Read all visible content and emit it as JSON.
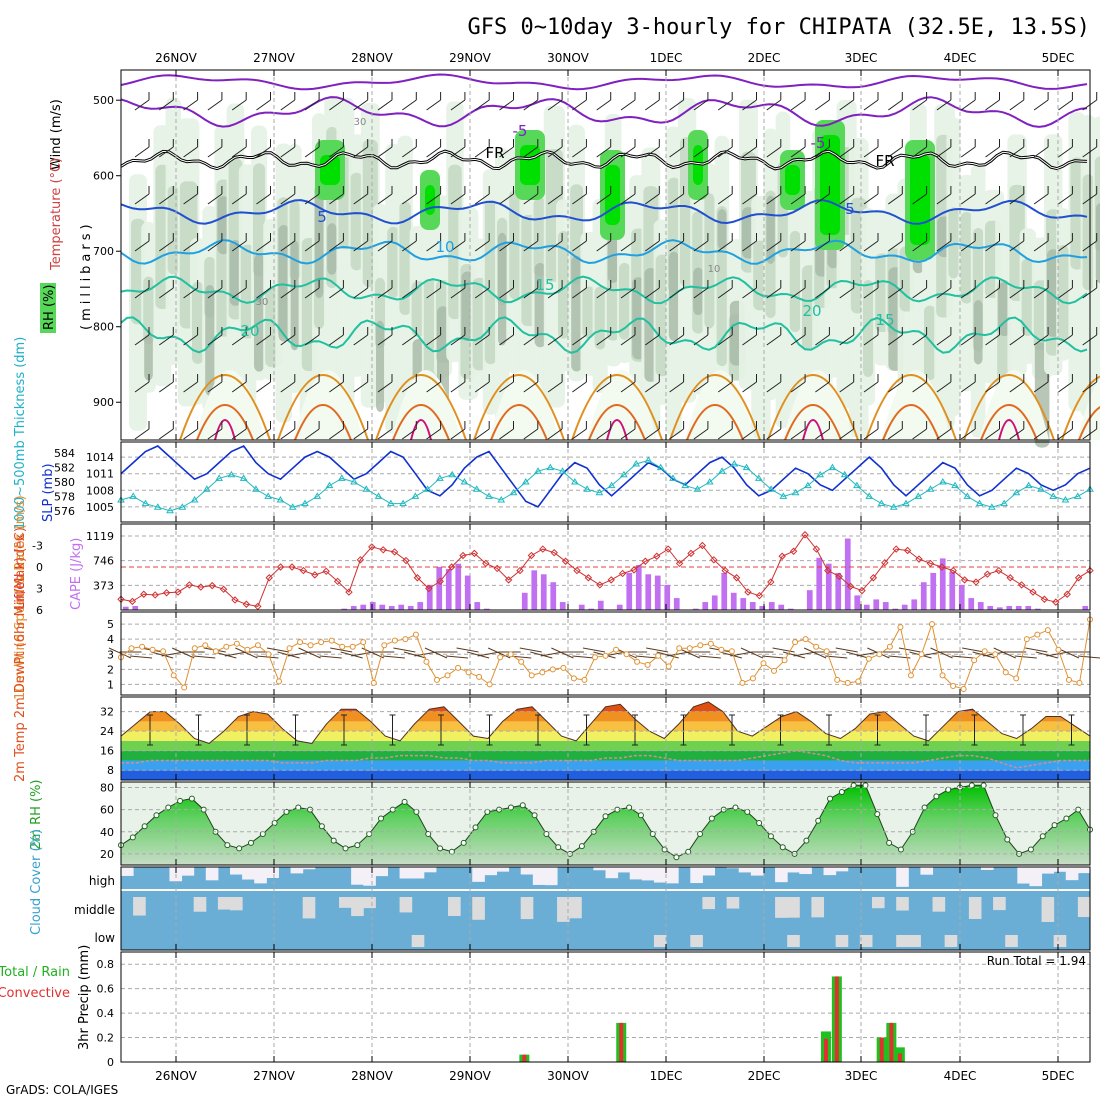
{
  "title": "GFS 0~10day 3-hourly for CHIPATA (32.5E, 13.5S)",
  "credit": "GrADS: COLA/IGES",
  "dates": [
    "26NOV",
    "27NOV",
    "28NOV",
    "29NOV",
    "30NOV",
    "1DEC",
    "2DEC",
    "3DEC",
    "4DEC",
    "5DEC"
  ],
  "colors": {
    "rh_light": "#e6f2e6",
    "rh_mid": "#c8dcc8",
    "rh_dark": "#a6b8a6",
    "rh_green": "#58d858",
    "rh_bright": "#00e000",
    "isotherm_purple": "#8020c0",
    "isotherm_blue": "#2050d0",
    "isotherm_cyan": "#20a0e0",
    "isotherm_teal": "#20c0a0",
    "isotherm_orange": "#e09020",
    "isotherm_red": "#d02020",
    "slp": "#1030d0",
    "thickness": "#20b8c0",
    "cape": "#c070f0",
    "lifted": "#d03030",
    "wind": "#e09030",
    "cloud": "#6aaed6",
    "precip_total": "#20c020",
    "precip_conv": "#e03030"
  },
  "chart_data": [
    {
      "name": "upper-air-cross-section",
      "type": "heatmap",
      "ylabel_wind": "Wind (m/s)",
      "ylabel_temp": "Temperature (°C)",
      "ylabel_axis": "(millibars)",
      "ylabel_rh": "RH (%)",
      "yticks": [
        500,
        600,
        700,
        800,
        900
      ],
      "ylim": [
        950,
        460
      ],
      "contour_labels": [
        "-5",
        "-5",
        "FR",
        "FR",
        "5",
        "5",
        "10",
        "15",
        "15",
        "20",
        "20",
        "30",
        "30",
        "10"
      ]
    },
    {
      "name": "slp-thickness",
      "type": "line",
      "ylabel_thick": "1000~500mb Thickness (dm)",
      "ylabel_slp": "SLP (mb)",
      "thick_ticks": [
        576,
        578,
        580,
        582,
        584
      ],
      "slp_ticks": [
        1005,
        1008,
        1011,
        1014
      ],
      "slp": [
        1011,
        1013,
        1015,
        1016,
        1014,
        1012,
        1010,
        1011,
        1013,
        1015,
        1016,
        1013,
        1011,
        1010,
        1012,
        1014,
        1015,
        1014,
        1012,
        1010,
        1011,
        1013,
        1015,
        1014,
        1011,
        1008,
        1007,
        1009,
        1012,
        1014,
        1015,
        1012,
        1009,
        1006,
        1005,
        1008,
        1011,
        1013,
        1012,
        1009,
        1007,
        1009,
        1011,
        1013,
        1012,
        1010,
        1009,
        1011,
        1013,
        1014,
        1012,
        1009,
        1007,
        1008,
        1010,
        1012,
        1011,
        1009,
        1008,
        1010,
        1012,
        1014,
        1012,
        1009,
        1007,
        1009,
        1011,
        1013,
        1012,
        1009,
        1007,
        1008,
        1010,
        1012,
        1011,
        1009,
        1008,
        1009,
        1011,
        1012
      ],
      "thickness": [
        577.5,
        578,
        577,
        576.5,
        576,
        576.5,
        577.5,
        579,
        580.5,
        581,
        580.5,
        579,
        578,
        577.5,
        576.5,
        577,
        578,
        579.5,
        580.5,
        580,
        579,
        578,
        577,
        577,
        578,
        579,
        580.5,
        581,
        580,
        579,
        578,
        577.5,
        578.5,
        580,
        581.5,
        582,
        581.5,
        580,
        579,
        578.5,
        579.5,
        581,
        582.5,
        583,
        582,
        580.5,
        579.5,
        579,
        580,
        581.5,
        582.5,
        582,
        580.5,
        579,
        578,
        578.5,
        579.5,
        581,
        582,
        581,
        579.5,
        578,
        577,
        576.5,
        577,
        578,
        579,
        580,
        579.5,
        578,
        577,
        576.5,
        577,
        578.5,
        579.5,
        579,
        578,
        577.5,
        578,
        579
      ]
    },
    {
      "name": "cape-lifted-index",
      "type": "bar",
      "ylabel_li": "Lifted Index",
      "ylabel_cape": "CAPE (J/kg)",
      "li_ticks": [
        -3,
        0,
        3,
        6
      ],
      "cape_ticks": [
        373,
        746,
        1119
      ],
      "cape": [
        50,
        60,
        0,
        0,
        0,
        0,
        0,
        0,
        0,
        0,
        0,
        0,
        0,
        0,
        0,
        0,
        0,
        0,
        0,
        0,
        0,
        0,
        0,
        20,
        60,
        80,
        120,
        80,
        60,
        80,
        60,
        120,
        380,
        650,
        620,
        700,
        520,
        120,
        20,
        0,
        0,
        0,
        260,
        600,
        540,
        420,
        120,
        0,
        80,
        20,
        140,
        0,
        80,
        560,
        680,
        540,
        520,
        380,
        180,
        0,
        20,
        120,
        220,
        560,
        260,
        180,
        120,
        60,
        120,
        80,
        20,
        0,
        300,
        790,
        700,
        560,
        1080,
        220,
        80,
        160,
        120,
        20,
        80,
        160,
        420,
        560,
        780,
        580,
        380,
        180,
        120,
        60,
        40,
        60,
        60,
        60,
        20,
        0,
        0,
        0,
        0,
        60
      ],
      "lifted": [
        4.5,
        4.8,
        3.8,
        3.9,
        3.6,
        3.5,
        2.5,
        2.8,
        2.6,
        3.1,
        4.6,
        5.2,
        5.5,
        1.5,
        0,
        0,
        0.5,
        1.1,
        0.6,
        2,
        3.5,
        -1,
        -2.8,
        -2.4,
        -2.1,
        -0.9,
        1.5,
        3,
        2,
        0,
        -1.6,
        -1.9,
        -0.5,
        0.2,
        1.8,
        0.5,
        -1.6,
        -2.5,
        -2,
        -0.8,
        0.5,
        1.5,
        2.5,
        1.8,
        0.9,
        0.4,
        -0.8,
        -1.5,
        -2.5,
        -0.5,
        -1.9,
        -3,
        -1,
        0.5,
        1.5,
        3.5,
        4,
        2.1,
        -1.5,
        -2.2,
        -4.5,
        -2.5,
        0.5,
        1.3,
        2.7,
        3.3,
        1.5,
        -0.6,
        -2.5,
        -2.3,
        -1.1,
        -0.5,
        0,
        0.5,
        1.8,
        2.1,
        1,
        0.5,
        1.5,
        2.5,
        3.5,
        4.5,
        4.9,
        3.8,
        1.5,
        0.5
      ]
    },
    {
      "name": "10m-wind",
      "type": "line",
      "ylabel": "10m Wind Speed & Barbs (m/s)",
      "yticks": [
        1,
        2,
        3,
        4,
        5
      ],
      "speed": [
        2.8,
        3.4,
        3.5,
        3.3,
        3.2,
        1.6,
        0.8,
        3.4,
        3.6,
        3.2,
        3.5,
        3.7,
        3.3,
        3.6,
        3.0,
        1.2,
        3.4,
        3.8,
        3.6,
        3.8,
        3.9,
        3.5,
        3.5,
        3.8,
        1.1,
        3.6,
        3.9,
        4.0,
        4.3,
        2.5,
        1.3,
        1.6,
        2.1,
        1.8,
        1.5,
        1.0,
        2.8,
        3.0,
        2.5,
        1.6,
        1.8,
        2.0,
        2.1,
        1.4,
        1.3,
        2.8,
        2.9,
        3.3,
        3.0,
        2.5,
        2.3,
        2.9,
        2.2,
        3.4,
        3.4,
        3.6,
        3.7,
        3.3,
        3.2,
        1.1,
        1.4,
        2.4,
        1.9,
        2.6,
        3.8,
        4.0,
        3.5,
        3.2,
        1.3,
        1.1,
        1.2,
        2.7,
        3.0,
        3.5,
        4.8,
        1.6,
        3.0,
        5.0,
        1.6,
        0.9,
        0.7,
        2.6,
        3.2,
        3.0,
        1.8,
        1.4,
        4.0,
        4.3,
        4.6,
        3.3,
        1.3,
        1.1,
        5.3
      ]
    },
    {
      "name": "2m-temp",
      "type": "area",
      "ylabel": "2m Temp 2m DewPt (6hr Min/Max) (°C)",
      "yticks": [
        8,
        16,
        24,
        32
      ],
      "temp": [
        22,
        27,
        32,
        32,
        27,
        21,
        19,
        24,
        30,
        32,
        31,
        25,
        20,
        19,
        27,
        33,
        33,
        28,
        22,
        20,
        27,
        33,
        34,
        28,
        22,
        21,
        28,
        33,
        34,
        28,
        22,
        20,
        27,
        34,
        35,
        29,
        24,
        21,
        27,
        34,
        36,
        32,
        24,
        22,
        26,
        30,
        32,
        28,
        23,
        21,
        25,
        31,
        32,
        27,
        22,
        20,
        26,
        32,
        33,
        28,
        23,
        21,
        25,
        30,
        30,
        26,
        22
      ],
      "dewpt": [
        11,
        11,
        12,
        12,
        12,
        12,
        12,
        12,
        12,
        12,
        12,
        11,
        11,
        11,
        12,
        12,
        12,
        13,
        13,
        14,
        14,
        14,
        13,
        13,
        12,
        12,
        11,
        11,
        11,
        12,
        12,
        12,
        12,
        13,
        13,
        14,
        14,
        13,
        12,
        12,
        12,
        12,
        12,
        13,
        14,
        15,
        16,
        15,
        14,
        12,
        11,
        11,
        11,
        11,
        11,
        12,
        13,
        14,
        14,
        13,
        11,
        9,
        10,
        11,
        12,
        12,
        12
      ]
    },
    {
      "name": "2m-rh",
      "type": "area",
      "ylabel": "2m RH (%)",
      "yticks": [
        20,
        40,
        60,
        80
      ],
      "rh": [
        28,
        35,
        45,
        55,
        62,
        68,
        70,
        60,
        40,
        28,
        25,
        30,
        38,
        48,
        58,
        62,
        60,
        45,
        32,
        25,
        28,
        38,
        52,
        60,
        67,
        58,
        38,
        25,
        22,
        30,
        44,
        58,
        60,
        62,
        64,
        55,
        38,
        26,
        20,
        27,
        40,
        54,
        60,
        62,
        55,
        38,
        24,
        17,
        22,
        38,
        52,
        60,
        62,
        58,
        48,
        36,
        26,
        20,
        32,
        50,
        70,
        76,
        82,
        82,
        56,
        30,
        24,
        40,
        62,
        72,
        78,
        80,
        82,
        82,
        55,
        33,
        20,
        24,
        36,
        46,
        52,
        60,
        42
      ]
    },
    {
      "name": "cloud-cover",
      "type": "heatmap",
      "ylabel": "Cloud Cover (%)",
      "levels": [
        "high",
        "middle",
        "low"
      ]
    },
    {
      "name": "3hr-precip",
      "type": "bar",
      "ylabel_total": "Total / Rain",
      "ylabel_conv": "Convective",
      "ylabel_axis": "3hr Precip (mm)",
      "yticks": [
        0,
        0.2,
        0.4,
        0.6,
        0.8
      ],
      "ylim": [
        0,
        0.9
      ],
      "run_total": "Run Total = 1.94",
      "bars": [
        {
          "t": 33.3,
          "total": 0.06,
          "conv": 0.06
        },
        {
          "t": 41.3,
          "total": 0.32,
          "conv": 0.32
        },
        {
          "t": 58.2,
          "total": 0.25,
          "conv": 0.19
        },
        {
          "t": 59.1,
          "total": 0.7,
          "conv": 0.7
        },
        {
          "t": 62.8,
          "total": 0.2,
          "conv": 0.2
        },
        {
          "t": 63.6,
          "total": 0.32,
          "conv": 0.32
        },
        {
          "t": 64.3,
          "total": 0.12,
          "conv": 0.07
        }
      ]
    }
  ]
}
